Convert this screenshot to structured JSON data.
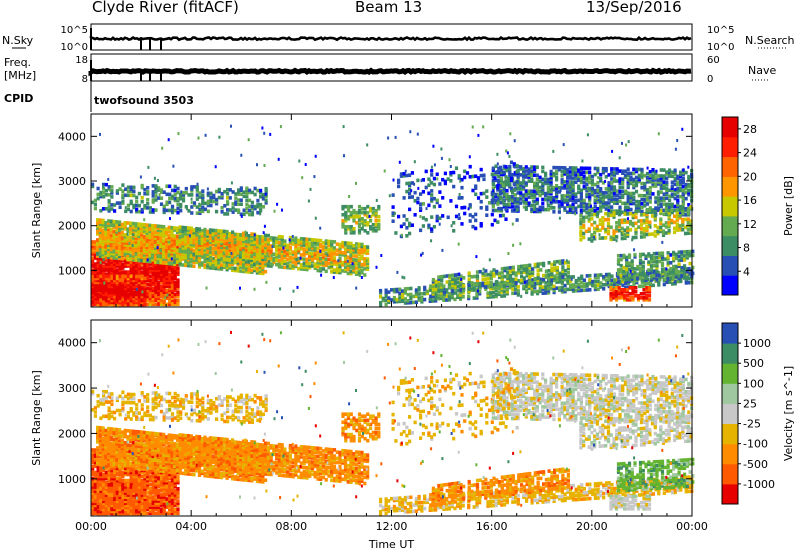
{
  "header": {
    "title": "Clyde River (fitACF)",
    "beam": "Beam 13",
    "date": "13/Sep/2016"
  },
  "params_panel": {
    "nsky_label": "N.Sky",
    "nsearch_label": "N.Search",
    "freq_label_line1": "Freq.",
    "freq_label_line2": "[MHz]",
    "nave_label": "Nave",
    "cpid_label": "CPID",
    "cpid_value": "twofsound 3503",
    "noise_ticks_left": [
      "10^5",
      "10^0"
    ],
    "noise_ticks_right": [
      "10^5",
      "10^0"
    ],
    "freq_ticks_left": [
      "18",
      "8"
    ],
    "nave_ticks_right": [
      "60",
      "0"
    ]
  },
  "colors": {
    "power_scale": [
      "#0000ff",
      "#2850b4",
      "#3c8c64",
      "#64aa50",
      "#c8c800",
      "#ff9600",
      "#ff6400",
      "#ff1e00",
      "#e60000"
    ],
    "velocity_scale": [
      "#e60000",
      "#ff5a00",
      "#ff8c00",
      "#e6b400",
      "#c8c8c8",
      "#a0c8a0",
      "#64b432",
      "#3c8c64",
      "#2850b4"
    ]
  },
  "chart_data": [
    {
      "type": "line",
      "title": "",
      "ylabel": "N.Sky",
      "y_scale": "log",
      "ylim": [
        1,
        100000
      ],
      "x": [
        "00:00",
        "04:00",
        "08:00",
        "12:00",
        "16:00",
        "20:00",
        "00:00"
      ],
      "series": []
    },
    {
      "type": "line",
      "ylabel": "Freq. [MHz]",
      "ylim": [
        8,
        18
      ],
      "y2label": "Nave",
      "y2lim": [
        0,
        60
      ],
      "series": []
    },
    {
      "type": "heatmap",
      "panel": "power",
      "xlabel": "",
      "ylabel": "Slant Range [km]",
      "yticks": [
        1000,
        2000,
        3000,
        4000
      ],
      "ylim": [
        180,
        4500
      ],
      "xticks": [
        "00:00",
        "04:00",
        "08:00",
        "12:00",
        "16:00",
        "20:00",
        "00:00"
      ],
      "xlim_hours": [
        0,
        24
      ],
      "colorbar_label": "Power [dB]",
      "colorbar_ticks": [
        "4",
        "8",
        "12",
        "16",
        "20",
        "24",
        "28"
      ],
      "colorbar_range": [
        0,
        30
      ]
    },
    {
      "type": "heatmap",
      "panel": "velocity",
      "xlabel": "Time UT",
      "ylabel": "Slant Range [km]",
      "yticks": [
        1000,
        2000,
        3000,
        4000
      ],
      "ylim": [
        180,
        4500
      ],
      "xticks": [
        "00:00",
        "04:00",
        "08:00",
        "12:00",
        "16:00",
        "20:00",
        "00:00"
      ],
      "xlim_hours": [
        0,
        24
      ],
      "colorbar_label": "Velocity [m s^-1]",
      "colorbar_ticks": [
        "1000",
        "500",
        "100",
        "25",
        "-25",
        "-100",
        "-500",
        "-1000"
      ]
    }
  ]
}
